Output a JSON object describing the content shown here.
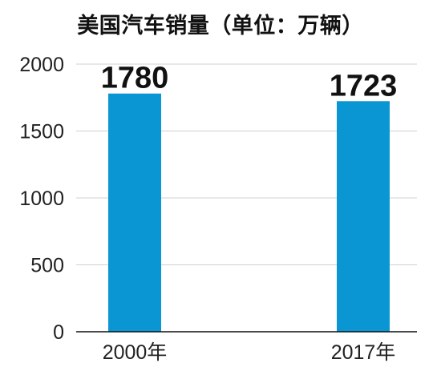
{
  "chart_data": {
    "type": "bar",
    "title": "美国汽车销量（单位：万辆）",
    "categories": [
      "2000年",
      "2017年"
    ],
    "values": [
      1780,
      1723
    ],
    "data_labels": [
      "1780",
      "1723"
    ],
    "ylim": [
      0,
      2000
    ],
    "yticks": [
      0,
      500,
      1000,
      1500,
      2000
    ],
    "ytick_labels": [
      "0",
      "500",
      "1000",
      "1500",
      "2000"
    ],
    "xlabel": "",
    "ylabel": "",
    "grid": true,
    "legend": "none",
    "bar_color": "#0a96d2",
    "grid_color": "#d0d0d0",
    "axis_color": "#111111"
  }
}
